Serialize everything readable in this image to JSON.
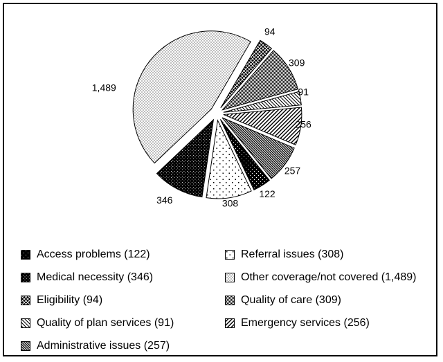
{
  "chart_data": {
    "type": "pie",
    "title": "",
    "total": 3272,
    "slices": [
      {
        "name": "Eligibility",
        "value": 94,
        "label": "94",
        "pattern": "dark-trellis"
      },
      {
        "name": "Quality of care",
        "value": 309,
        "label": "309",
        "pattern": "checkerboard"
      },
      {
        "name": "Quality of plan services",
        "value": 91,
        "label": "91",
        "pattern": "thin-backslash"
      },
      {
        "name": "Emergency services",
        "value": 256,
        "label": "256",
        "pattern": "forward-slash"
      },
      {
        "name": "Administrative issues",
        "value": 257,
        "label": "257",
        "pattern": "dense-backslash"
      },
      {
        "name": "Access problems",
        "value": 122,
        "label": "122",
        "pattern": "black-sparse-white-dots"
      },
      {
        "name": "Referral issues",
        "value": 308,
        "label": "308",
        "pattern": "sparse-black-dots"
      },
      {
        "name": "Medical necessity",
        "value": 346,
        "label": "346",
        "pattern": "black-white-dots"
      },
      {
        "name": "Other coverage/not covered",
        "value": 1489,
        "label": "1,489",
        "pattern": "fine-black-dots"
      }
    ],
    "legend": {
      "position": "bottom",
      "columns": [
        [
          {
            "text": "Access problems (122)",
            "pattern": "black-sparse-white-dots"
          },
          {
            "text": "Medical necessity (346)",
            "pattern": "black-white-dots"
          },
          {
            "text": "Eligibility (94)",
            "pattern": "dark-trellis"
          },
          {
            "text": "Quality of plan services (91)",
            "pattern": "thin-backslash"
          },
          {
            "text": "Administrative issues (257)",
            "pattern": "dense-backslash"
          }
        ],
        [
          {
            "text": "Referral issues (308)",
            "pattern": "sparse-black-dots"
          },
          {
            "text": "Other coverage/not covered (1,489)",
            "pattern": "fine-black-dots"
          },
          {
            "text": "Quality of care (309)",
            "pattern": "checkerboard"
          },
          {
            "text": "Emergency services (256)",
            "pattern": "forward-slash"
          }
        ]
      ]
    },
    "layout_hints": {
      "start_angle_deg": 30.3,
      "direction": "clockwise",
      "exploded": true,
      "foreground_color": "#000000",
      "background_color": "#ffffff"
    }
  }
}
